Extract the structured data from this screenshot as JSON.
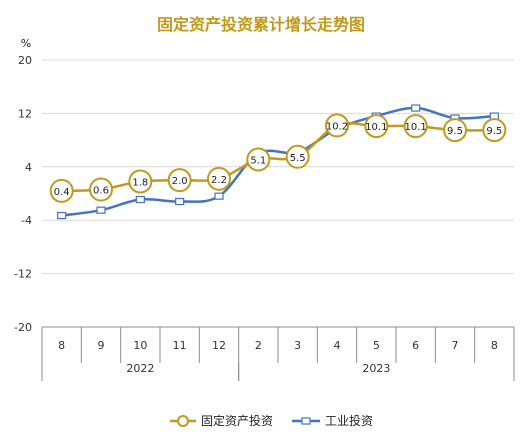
{
  "chart_data": {
    "type": "line",
    "title": "固定资产投资累计增长走势图",
    "y_unit": "%",
    "ylim": [
      -20,
      20
    ],
    "yticks": [
      "20",
      "12",
      "4",
      "-4",
      "-12",
      "-20"
    ],
    "ytick_values": [
      20,
      12,
      4,
      -4,
      -12,
      -20
    ],
    "grid": true,
    "legend_position": "bottom",
    "categories": [
      "8",
      "9",
      "10",
      "11",
      "12",
      "2",
      "3",
      "4",
      "5",
      "6",
      "7",
      "8"
    ],
    "year_groups": [
      {
        "label": "2022",
        "start": 0,
        "end": 4
      },
      {
        "label": "2023",
        "start": 5,
        "end": 11
      }
    ],
    "series": [
      {
        "name": "固定资产投资",
        "color": "#C19A1B",
        "marker": "circle",
        "values": [
          0.4,
          0.6,
          1.8,
          2.0,
          2.2,
          5.1,
          5.5,
          10.2,
          10.1,
          10.1,
          9.5,
          9.5
        ],
        "labels": [
          "0.4",
          "0.6",
          "1.8",
          "2.0",
          "2.2",
          "5.1",
          "5.5",
          "10.2",
          "10.1",
          "10.1",
          "9.5",
          "9.5"
        ]
      },
      {
        "name": "工业投资",
        "color": "#4472C4",
        "marker": "square",
        "values": [
          -3.3,
          -2.5,
          -0.9,
          -1.2,
          -0.4,
          6.0,
          6.2,
          9.7,
          11.6,
          12.8,
          11.3,
          11.6
        ]
      }
    ]
  }
}
